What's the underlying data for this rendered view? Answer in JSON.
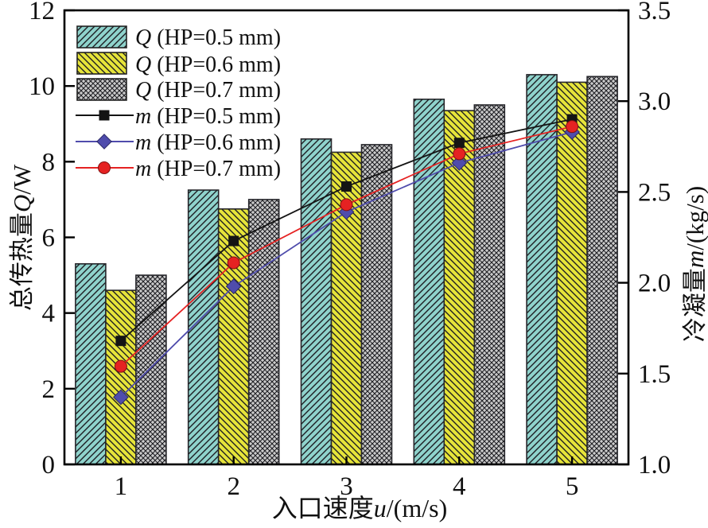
{
  "chart_data": {
    "type": "bar+line",
    "title": "",
    "categories": [
      "1",
      "2",
      "3",
      "4",
      "5"
    ],
    "bar_series": [
      {
        "name": "Q (HP=0.5 mm)",
        "label_var": "Q",
        "label_rest": "(HP=0.5 mm)",
        "color": "#8FD3CC",
        "hatch": "fwd",
        "axis": "left",
        "values": [
          5.3,
          7.25,
          8.6,
          9.65,
          10.3
        ]
      },
      {
        "name": "Q (HP=0.6 mm)",
        "label_var": "Q",
        "label_rest": "(HP=0.6 mm)",
        "color": "#E6E43A",
        "hatch": "back",
        "axis": "left",
        "values": [
          4.6,
          6.75,
          8.25,
          9.35,
          10.1
        ]
      },
      {
        "name": "Q (HP=0.7 mm)",
        "label_var": "Q",
        "label_rest": "(HP=0.7 mm)",
        "color": "#CBCBCB",
        "hatch": "cross",
        "axis": "left",
        "values": [
          5.0,
          7.0,
          8.45,
          9.5,
          10.25
        ]
      }
    ],
    "line_series": [
      {
        "name": "m (HP=0.5 mm)",
        "label_var": "m",
        "label_rest": "(HP=0.5 mm)",
        "color": "#141414",
        "marker": "square",
        "axis": "right",
        "values": [
          1.68,
          2.23,
          2.53,
          2.77,
          2.9
        ]
      },
      {
        "name": "m (HP=0.6 mm)",
        "label_var": "m",
        "label_rest": "(HP=0.6 mm)",
        "color": "#4F4CAC",
        "marker": "diamond",
        "axis": "right",
        "values": [
          1.37,
          1.98,
          2.39,
          2.66,
          2.83
        ]
      },
      {
        "name": "m (HP=0.7 mm)",
        "label_var": "m",
        "label_rest": "(HP=0.7 mm)",
        "color": "#E52222",
        "marker": "circle",
        "axis": "right",
        "values": [
          1.54,
          2.11,
          2.43,
          2.71,
          2.86
        ]
      }
    ],
    "axes": {
      "left": {
        "title_cjk": "总传热量",
        "title_var": "Q",
        "title_unit": "/W",
        "min": 0,
        "max": 12,
        "ticks": [
          "0",
          "2",
          "4",
          "6",
          "8",
          "10",
          "12"
        ]
      },
      "right": {
        "title_cjk": "冷凝量",
        "title_var": "m",
        "title_unit": "/(kg/s)",
        "min": 1.0,
        "max": 3.5,
        "ticks": [
          "1.0",
          "1.5",
          "2.0",
          "2.5",
          "3.0",
          "3.5"
        ]
      },
      "x": {
        "title_cjk": "入口速度",
        "title_var": "u",
        "title_unit": "/(m/s)",
        "ticks": [
          "1",
          "2",
          "3",
          "4",
          "5"
        ]
      }
    },
    "legend_position": "top-left",
    "grid": false
  }
}
